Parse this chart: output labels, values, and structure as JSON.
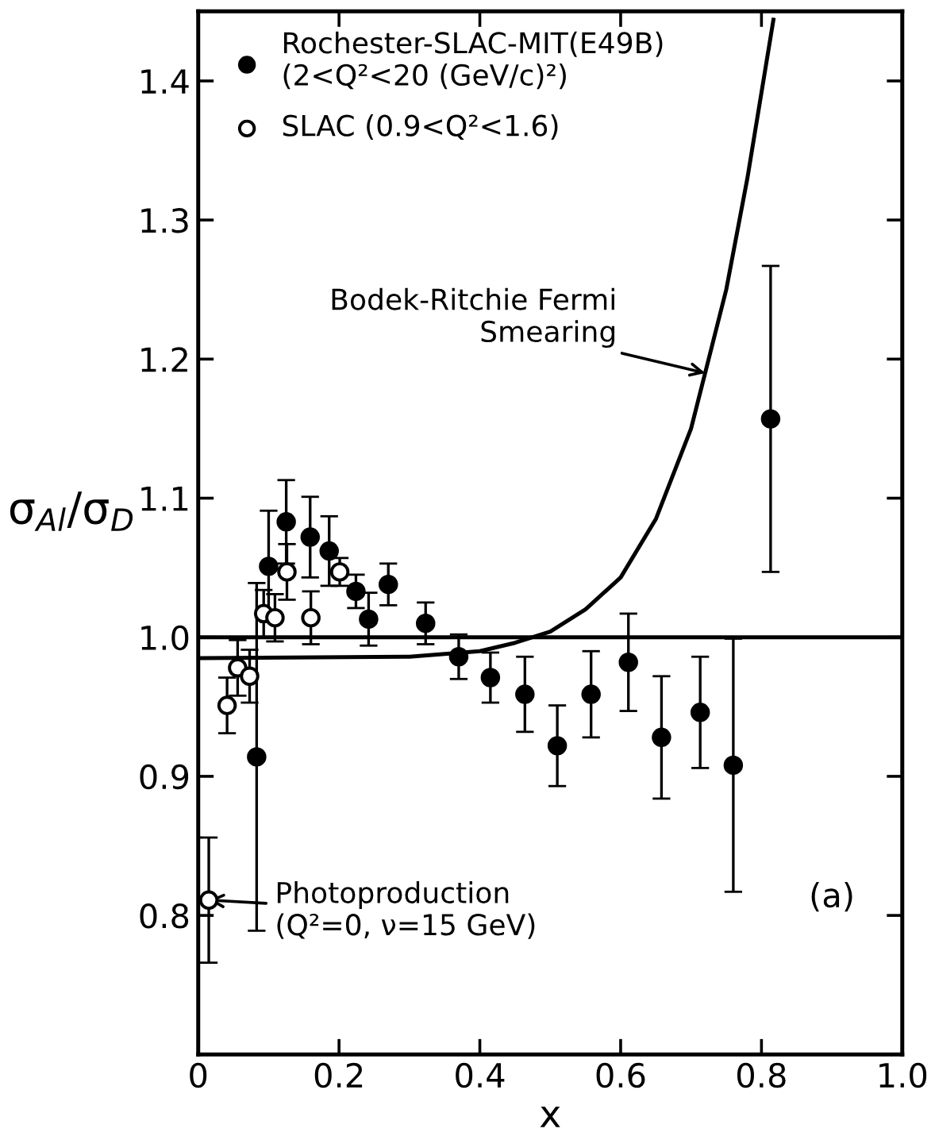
{
  "chart_data": {
    "type": "scatter",
    "xlabel": "x",
    "ylabel": "σ$_{Al}$/σ$_{D}$",
    "xlim": [
      0,
      1.0
    ],
    "ylim": [
      0.7,
      1.45
    ],
    "xticks": [
      0,
      0.2,
      0.4,
      0.6,
      0.8,
      {
        "value": 1.0,
        "label": "1.0"
      }
    ],
    "yticks": [
      0.8,
      0.9,
      {
        "value": 1.0,
        "label": "1.0"
      },
      1.1,
      1.2,
      1.3,
      1.4
    ],
    "grid": false,
    "legend": "top left",
    "marker": "circle",
    "series": [
      {
        "name": "Rochester-SLAC-MIT(E49B)\n(2<Q²<20 (GeV/c)²)",
        "color": "#000000",
        "x": [
          0.083,
          0.1,
          0.125,
          0.159,
          0.186,
          0.224,
          0.242,
          0.27,
          0.323,
          0.37,
          0.415,
          0.464,
          0.51,
          0.558,
          0.611,
          0.658,
          0.713,
          0.76,
          0.813
        ],
        "values": [
          0.914,
          1.051,
          1.083,
          1.072,
          1.062,
          1.033,
          1.013,
          1.038,
          1.01,
          0.986,
          0.971,
          0.959,
          0.922,
          0.959,
          0.982,
          0.928,
          0.946,
          0.908,
          1.157
        ],
        "errors": [
          0.125,
          0.04,
          0.03,
          0.029,
          0.025,
          0.012,
          0.019,
          0.015,
          0.015,
          0.016,
          0.018,
          0.027,
          0.029,
          0.031,
          0.035,
          0.044,
          0.04,
          0.091,
          0.11
        ]
      },
      {
        "name": "SLAC (0.9<Q²<1.6)",
        "color": "#ffffff",
        "x": [
          0.041,
          0.056,
          0.073,
          0.093,
          0.109,
          0.126,
          0.16,
          0.201
        ],
        "values": [
          0.951,
          0.978,
          0.972,
          1.017,
          1.014,
          1.047,
          1.014,
          1.047
        ],
        "errors": [
          0.02,
          0.02,
          0.019,
          0.017,
          0.017,
          0.02,
          0.019,
          0.01
        ]
      },
      {
        "color": "#ffffff",
        "x": [
          0.015
        ],
        "values": [
          0.811
        ],
        "errors": [
          0.045
        ]
      },
      {
        "type": "line",
        "color": "#000000",
        "marker": "none",
        "x": [
          0,
          0.3,
          0.4,
          0.45,
          0.5,
          0.55,
          0.6,
          0.65,
          0.7,
          0.72,
          0.75,
          0.78,
          0.817
        ],
        "values": [
          0.985,
          0.986,
          0.99,
          0.996,
          1.004,
          1.02,
          1.043,
          1.085,
          1.15,
          1.19,
          1.25,
          1.33,
          1.444
        ]
      }
    ],
    "ref_lines": [
      {
        "axis": "y",
        "value": 1.0,
        "color": "#000000"
      }
    ],
    "annotations": [
      {
        "text": "Bodek-Ritchie Fermi\nSmearing",
        "x": 0.72,
        "y": 1.19
      },
      {
        "text": "Photoproduction\n(Q²=0, ν=15 GeV)",
        "x": 0.015,
        "y": 0.811
      },
      "(a)"
    ]
  }
}
